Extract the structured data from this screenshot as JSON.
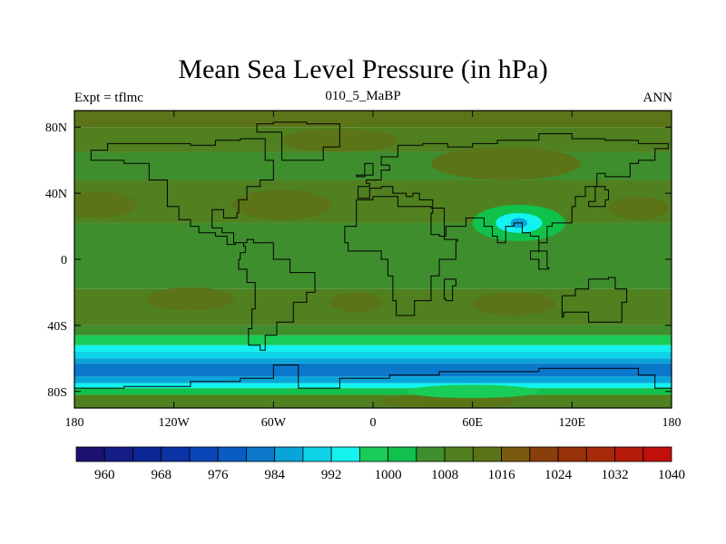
{
  "chart_data": {
    "type": "heatmap",
    "title": "Mean Sea Level Pressure (in hPa)",
    "subtitle_left": "Expt = tflmc",
    "subtitle_center": "010_5_MaBP",
    "subtitle_right": "ANN",
    "x_range": [
      -180,
      180
    ],
    "y_range": [
      -90,
      90
    ],
    "x_ticks": [
      {
        "value": -180,
        "label": "180"
      },
      {
        "value": -120,
        "label": "120W"
      },
      {
        "value": -60,
        "label": "60W"
      },
      {
        "value": 0,
        "label": "0"
      },
      {
        "value": 60,
        "label": "60E"
      },
      {
        "value": 120,
        "label": "120E"
      },
      {
        "value": 180,
        "label": "180"
      }
    ],
    "y_ticks": [
      {
        "value": 80,
        "label": "80N"
      },
      {
        "value": 40,
        "label": "40N"
      },
      {
        "value": 0,
        "label": "0"
      },
      {
        "value": -40,
        "label": "40S"
      },
      {
        "value": -80,
        "label": "80S"
      }
    ],
    "colorbar": {
      "levels": [
        960,
        964,
        968,
        972,
        976,
        980,
        984,
        988,
        992,
        996,
        1000,
        1004,
        1008,
        1012,
        1016,
        1020,
        1024,
        1028,
        1032,
        1036,
        1040
      ],
      "labeled": [
        "960",
        "968",
        "976",
        "984",
        "992",
        "1000",
        "1008",
        "1016",
        "1024",
        "1032",
        "1040"
      ],
      "colors": [
        "#1a1170",
        "#141c85",
        "#0d2696",
        "#0b33a6",
        "#0b46b8",
        "#0a5cc4",
        "#0b78cc",
        "#09a4d8",
        "#0dd3e6",
        "#13f2ee",
        "#19cc57",
        "#10c24c",
        "#3f8e2e",
        "#50801f",
        "#5a7417",
        "#7a5a0f",
        "#8a3e0c",
        "#983009",
        "#a62a0a",
        "#b41b0b",
        "#c10f0c"
      ]
    },
    "field_bands": [
      {
        "lat_top": 90,
        "lat_bottom": 80,
        "pressure": 1016
      },
      {
        "lat_top": 80,
        "lat_bottom": 65,
        "pressure": 1012
      },
      {
        "lat_top": 65,
        "lat_bottom": 48,
        "pressure": 1008
      },
      {
        "lat_top": 48,
        "lat_bottom": 22,
        "pressure": 1014
      },
      {
        "lat_top": 22,
        "lat_bottom": -18,
        "pressure": 1008
      },
      {
        "lat_top": -18,
        "lat_bottom": -40,
        "pressure": 1014
      },
      {
        "lat_top": -40,
        "lat_bottom": -46,
        "pressure": 1008
      },
      {
        "lat_top": -46,
        "lat_bottom": -52,
        "pressure": 1000
      },
      {
        "lat_top": -52,
        "lat_bottom": -56,
        "pressure": 996
      },
      {
        "lat_top": -56,
        "lat_bottom": -60,
        "pressure": 992
      },
      {
        "lat_top": -60,
        "lat_bottom": -63,
        "pressure": 988
      },
      {
        "lat_top": -63,
        "lat_bottom": -71,
        "pressure": 984
      },
      {
        "lat_top": -71,
        "lat_bottom": -75,
        "pressure": 988
      },
      {
        "lat_top": -75,
        "lat_bottom": -78,
        "pressure": 996
      },
      {
        "lat_top": -78,
        "lat_bottom": -82,
        "pressure": 1004
      },
      {
        "lat_top": -82,
        "lat_bottom": -90,
        "pressure": 1012
      }
    ],
    "field_cells": [
      {
        "lon": -165,
        "lat": 33,
        "rlon": 22,
        "rlat": 8,
        "pressure": 1018
      },
      {
        "lon": -55,
        "lat": 33,
        "rlon": 30,
        "rlat": 9,
        "pressure": 1018
      },
      {
        "lon": 160,
        "lat": 31,
        "rlon": 18,
        "rlat": 7,
        "pressure": 1018
      },
      {
        "lon": -110,
        "lat": -24,
        "rlon": 26,
        "rlat": 7,
        "pressure": 1018
      },
      {
        "lon": -10,
        "lat": -26,
        "rlon": 16,
        "rlat": 6,
        "pressure": 1018
      },
      {
        "lon": 85,
        "lat": -27,
        "rlon": 25,
        "rlat": 7,
        "pressure": 1018
      },
      {
        "lon": 88,
        "lat": 22,
        "rlon": 28,
        "rlat": 11,
        "pressure": 1004
      },
      {
        "lon": 88,
        "lat": 22,
        "rlon": 14,
        "rlat": 6,
        "pressure": 996
      },
      {
        "lon": 88,
        "lat": 22,
        "rlon": 5,
        "rlat": 3,
        "pressure": 988
      },
      {
        "lon": -20,
        "lat": 72,
        "rlon": 35,
        "rlat": 7,
        "pressure": 1016
      },
      {
        "lon": 80,
        "lat": 58,
        "rlon": 45,
        "rlat": 10,
        "pressure": 1016
      },
      {
        "lon": 45,
        "lat": -86,
        "rlon": 40,
        "rlat": 4,
        "pressure": 1016
      },
      {
        "lon": 60,
        "lat": -80,
        "rlon": 40,
        "rlat": 4,
        "pressure": 1000
      }
    ],
    "coastlines": [
      [
        [
          -170,
          66
        ],
        [
          -160,
          70
        ],
        [
          -140,
          70
        ],
        [
          -125,
          70
        ],
        [
          -110,
          69
        ],
        [
          -95,
          72
        ],
        [
          -80,
          73
        ],
        [
          -65,
          60
        ],
        [
          -60,
          48
        ],
        [
          -68,
          44
        ],
        [
          -76,
          36
        ],
        [
          -81,
          28
        ],
        [
          -82,
          25
        ],
        [
          -90,
          30
        ],
        [
          -97,
          26
        ],
        [
          -97,
          19
        ],
        [
          -91,
          16
        ],
        [
          -84,
          10
        ],
        [
          -78,
          8
        ],
        [
          -77,
          4
        ],
        [
          -80,
          0
        ],
        [
          -81,
          -6
        ],
        [
          -76,
          -14
        ],
        [
          -71,
          -18
        ],
        [
          -71,
          -30
        ],
        [
          -73,
          -42
        ],
        [
          -75,
          -52
        ],
        [
          -68,
          -55
        ],
        [
          -65,
          -46
        ],
        [
          -58,
          -38
        ],
        [
          -48,
          -26
        ],
        [
          -40,
          -20
        ],
        [
          -35,
          -8
        ],
        [
          -50,
          0
        ],
        [
          -60,
          10
        ],
        [
          -72,
          12
        ],
        [
          -76,
          10
        ],
        [
          -83,
          9
        ],
        [
          -88,
          14
        ],
        [
          -95,
          16
        ],
        [
          -105,
          20
        ],
        [
          -110,
          24
        ],
        [
          -117,
          32
        ],
        [
          -124,
          40
        ],
        [
          -124,
          48
        ],
        [
          -135,
          58
        ],
        [
          -150,
          60
        ],
        [
          -165,
          60
        ],
        [
          -170,
          66
        ]
      ],
      [
        [
          -55,
          60
        ],
        [
          -45,
          60
        ],
        [
          -30,
          68
        ],
        [
          -20,
          74
        ],
        [
          -20,
          82
        ],
        [
          -40,
          83
        ],
        [
          -60,
          82
        ],
        [
          -70,
          77
        ],
        [
          -55,
          70
        ],
        [
          -55,
          60
        ]
      ],
      [
        [
          -10,
          36
        ],
        [
          -5,
          36
        ],
        [
          0,
          38
        ],
        [
          10,
          38
        ],
        [
          15,
          32
        ],
        [
          25,
          32
        ],
        [
          35,
          31
        ],
        [
          43,
          12
        ],
        [
          51,
          11
        ],
        [
          50,
          0
        ],
        [
          40,
          -10
        ],
        [
          35,
          -25
        ],
        [
          25,
          -34
        ],
        [
          18,
          -34
        ],
        [
          14,
          -25
        ],
        [
          12,
          -10
        ],
        [
          9,
          0
        ],
        [
          5,
          5
        ],
        [
          -5,
          5
        ],
        [
          -15,
          10
        ],
        [
          -17,
          20
        ],
        [
          -10,
          30
        ],
        [
          -10,
          36
        ]
      ],
      [
        [
          -9,
          38
        ],
        [
          -9,
          44
        ],
        [
          -2,
          46
        ],
        [
          -4,
          48
        ],
        [
          5,
          54
        ],
        [
          10,
          57
        ],
        [
          5,
          62
        ],
        [
          15,
          69
        ],
        [
          30,
          70
        ],
        [
          45,
          68
        ],
        [
          60,
          70
        ],
        [
          75,
          72
        ],
        [
          100,
          76
        ],
        [
          120,
          73
        ],
        [
          140,
          72
        ],
        [
          160,
          70
        ],
        [
          178,
          67
        ],
        [
          170,
          60
        ],
        [
          160,
          58
        ],
        [
          155,
          50
        ],
        [
          140,
          52
        ],
        [
          135,
          44
        ],
        [
          128,
          38
        ],
        [
          122,
          32
        ],
        [
          120,
          22
        ],
        [
          108,
          20
        ],
        [
          105,
          10
        ],
        [
          100,
          4
        ],
        [
          100,
          14
        ],
        [
          95,
          16
        ],
        [
          90,
          22
        ],
        [
          85,
          20
        ],
        [
          80,
          10
        ],
        [
          75,
          14
        ],
        [
          72,
          20
        ],
        [
          67,
          25
        ],
        [
          57,
          25
        ],
        [
          56,
          20
        ],
        [
          44,
          14
        ],
        [
          40,
          15
        ],
        [
          35,
          28
        ],
        [
          36,
          36
        ],
        [
          28,
          40
        ],
        [
          24,
          38
        ],
        [
          20,
          40
        ],
        [
          15,
          40
        ],
        [
          12,
          44
        ],
        [
          5,
          43
        ],
        [
          -2,
          37
        ],
        [
          -9,
          38
        ]
      ],
      [
        [
          114,
          -22
        ],
        [
          122,
          -18
        ],
        [
          130,
          -12
        ],
        [
          137,
          -12
        ],
        [
          142,
          -11
        ],
        [
          146,
          -18
        ],
        [
          153,
          -26
        ],
        [
          150,
          -38
        ],
        [
          140,
          -38
        ],
        [
          130,
          -32
        ],
        [
          115,
          -35
        ],
        [
          114,
          -22
        ]
      ],
      [
        [
          43,
          -12
        ],
        [
          50,
          -16
        ],
        [
          48,
          -25
        ],
        [
          44,
          -24
        ],
        [
          43,
          -12
        ]
      ],
      [
        [
          -180,
          -78
        ],
        [
          -150,
          -77
        ],
        [
          -110,
          -74
        ],
        [
          -80,
          -72
        ],
        [
          -60,
          -64
        ],
        [
          -45,
          -78
        ],
        [
          -20,
          -72
        ],
        [
          10,
          -70
        ],
        [
          40,
          -68
        ],
        [
          70,
          -68
        ],
        [
          100,
          -66
        ],
        [
          130,
          -66
        ],
        [
          160,
          -70
        ],
        [
          170,
          -78
        ],
        [
          180,
          -78
        ]
      ],
      [
        [
          -10,
          50
        ],
        [
          -5,
          58
        ],
        [
          0,
          58
        ],
        [
          0,
          51
        ],
        [
          -10,
          50
        ]
      ],
      [
        [
          130,
          32
        ],
        [
          140,
          36
        ],
        [
          142,
          42
        ],
        [
          140,
          44
        ],
        [
          134,
          35
        ],
        [
          130,
          32
        ]
      ],
      [
        [
          95,
          5
        ],
        [
          105,
          -5
        ],
        [
          106,
          -6
        ],
        [
          100,
          0
        ],
        [
          95,
          5
        ]
      ]
    ]
  }
}
